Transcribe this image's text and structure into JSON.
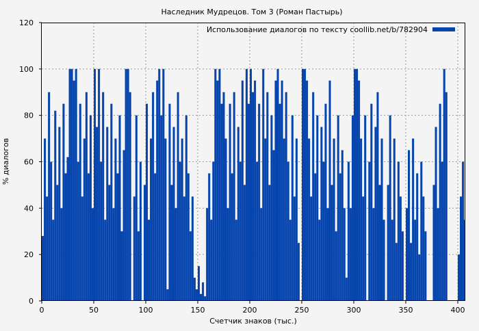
{
  "chart_data": {
    "type": "bar",
    "title": "Наследник Мудрецов. Том 3 (Роман Пастырь)",
    "xlabel": "Счетчик знаков (тыс.)",
    "ylabel": "% диалогов",
    "xlim": [
      0,
      406.6
    ],
    "ylim": [
      0,
      120
    ],
    "x_step": 2,
    "xticks": [
      0,
      50,
      100,
      150,
      200,
      250,
      300,
      350,
      400
    ],
    "yticks": [
      0,
      20,
      40,
      60,
      80,
      100,
      120
    ],
    "grid": true,
    "legend_position": "top-right",
    "series": [
      {
        "name": "Использование диалогов по тексту coollib.net/b/782904",
        "color": "#0645ad",
        "values": [
          28,
          70,
          45,
          90,
          60,
          35,
          82,
          50,
          75,
          40,
          85,
          55,
          62,
          100,
          100,
          95,
          100,
          60,
          85,
          45,
          70,
          90,
          55,
          80,
          40,
          100,
          75,
          100,
          60,
          90,
          35,
          75,
          50,
          85,
          40,
          70,
          55,
          80,
          30,
          65,
          100,
          100,
          90,
          0,
          45,
          80,
          30,
          60,
          0,
          50,
          85,
          35,
          70,
          90,
          55,
          95,
          100,
          80,
          100,
          70,
          5,
          85,
          50,
          75,
          40,
          90,
          60,
          70,
          45,
          80,
          55,
          30,
          45,
          10,
          5,
          15,
          3,
          8,
          2,
          40,
          55,
          35,
          60,
          100,
          95,
          100,
          85,
          90,
          70,
          40,
          85,
          55,
          90,
          35,
          75,
          60,
          95,
          50,
          100,
          85,
          100,
          90,
          95,
          60,
          85,
          40,
          100,
          70,
          90,
          50,
          80,
          65,
          95,
          100,
          85,
          95,
          70,
          90,
          60,
          35,
          80,
          45,
          70,
          25,
          0,
          100,
          100,
          95,
          70,
          45,
          90,
          55,
          80,
          35,
          75,
          60,
          85,
          40,
          95,
          50,
          70,
          30,
          80,
          55,
          65,
          40,
          10,
          60,
          40,
          80,
          100,
          100,
          95,
          70,
          45,
          80,
          0,
          60,
          85,
          40,
          75,
          90,
          50,
          70,
          35,
          0,
          50,
          80,
          35,
          70,
          25,
          60,
          45,
          30,
          0,
          40,
          65,
          25,
          70,
          35,
          55,
          20,
          60,
          45,
          30,
          0,
          0,
          0,
          50,
          75,
          40,
          85,
          60,
          100,
          90,
          0,
          0,
          0,
          0,
          0,
          20,
          45,
          60,
          35
        ]
      }
    ]
  }
}
